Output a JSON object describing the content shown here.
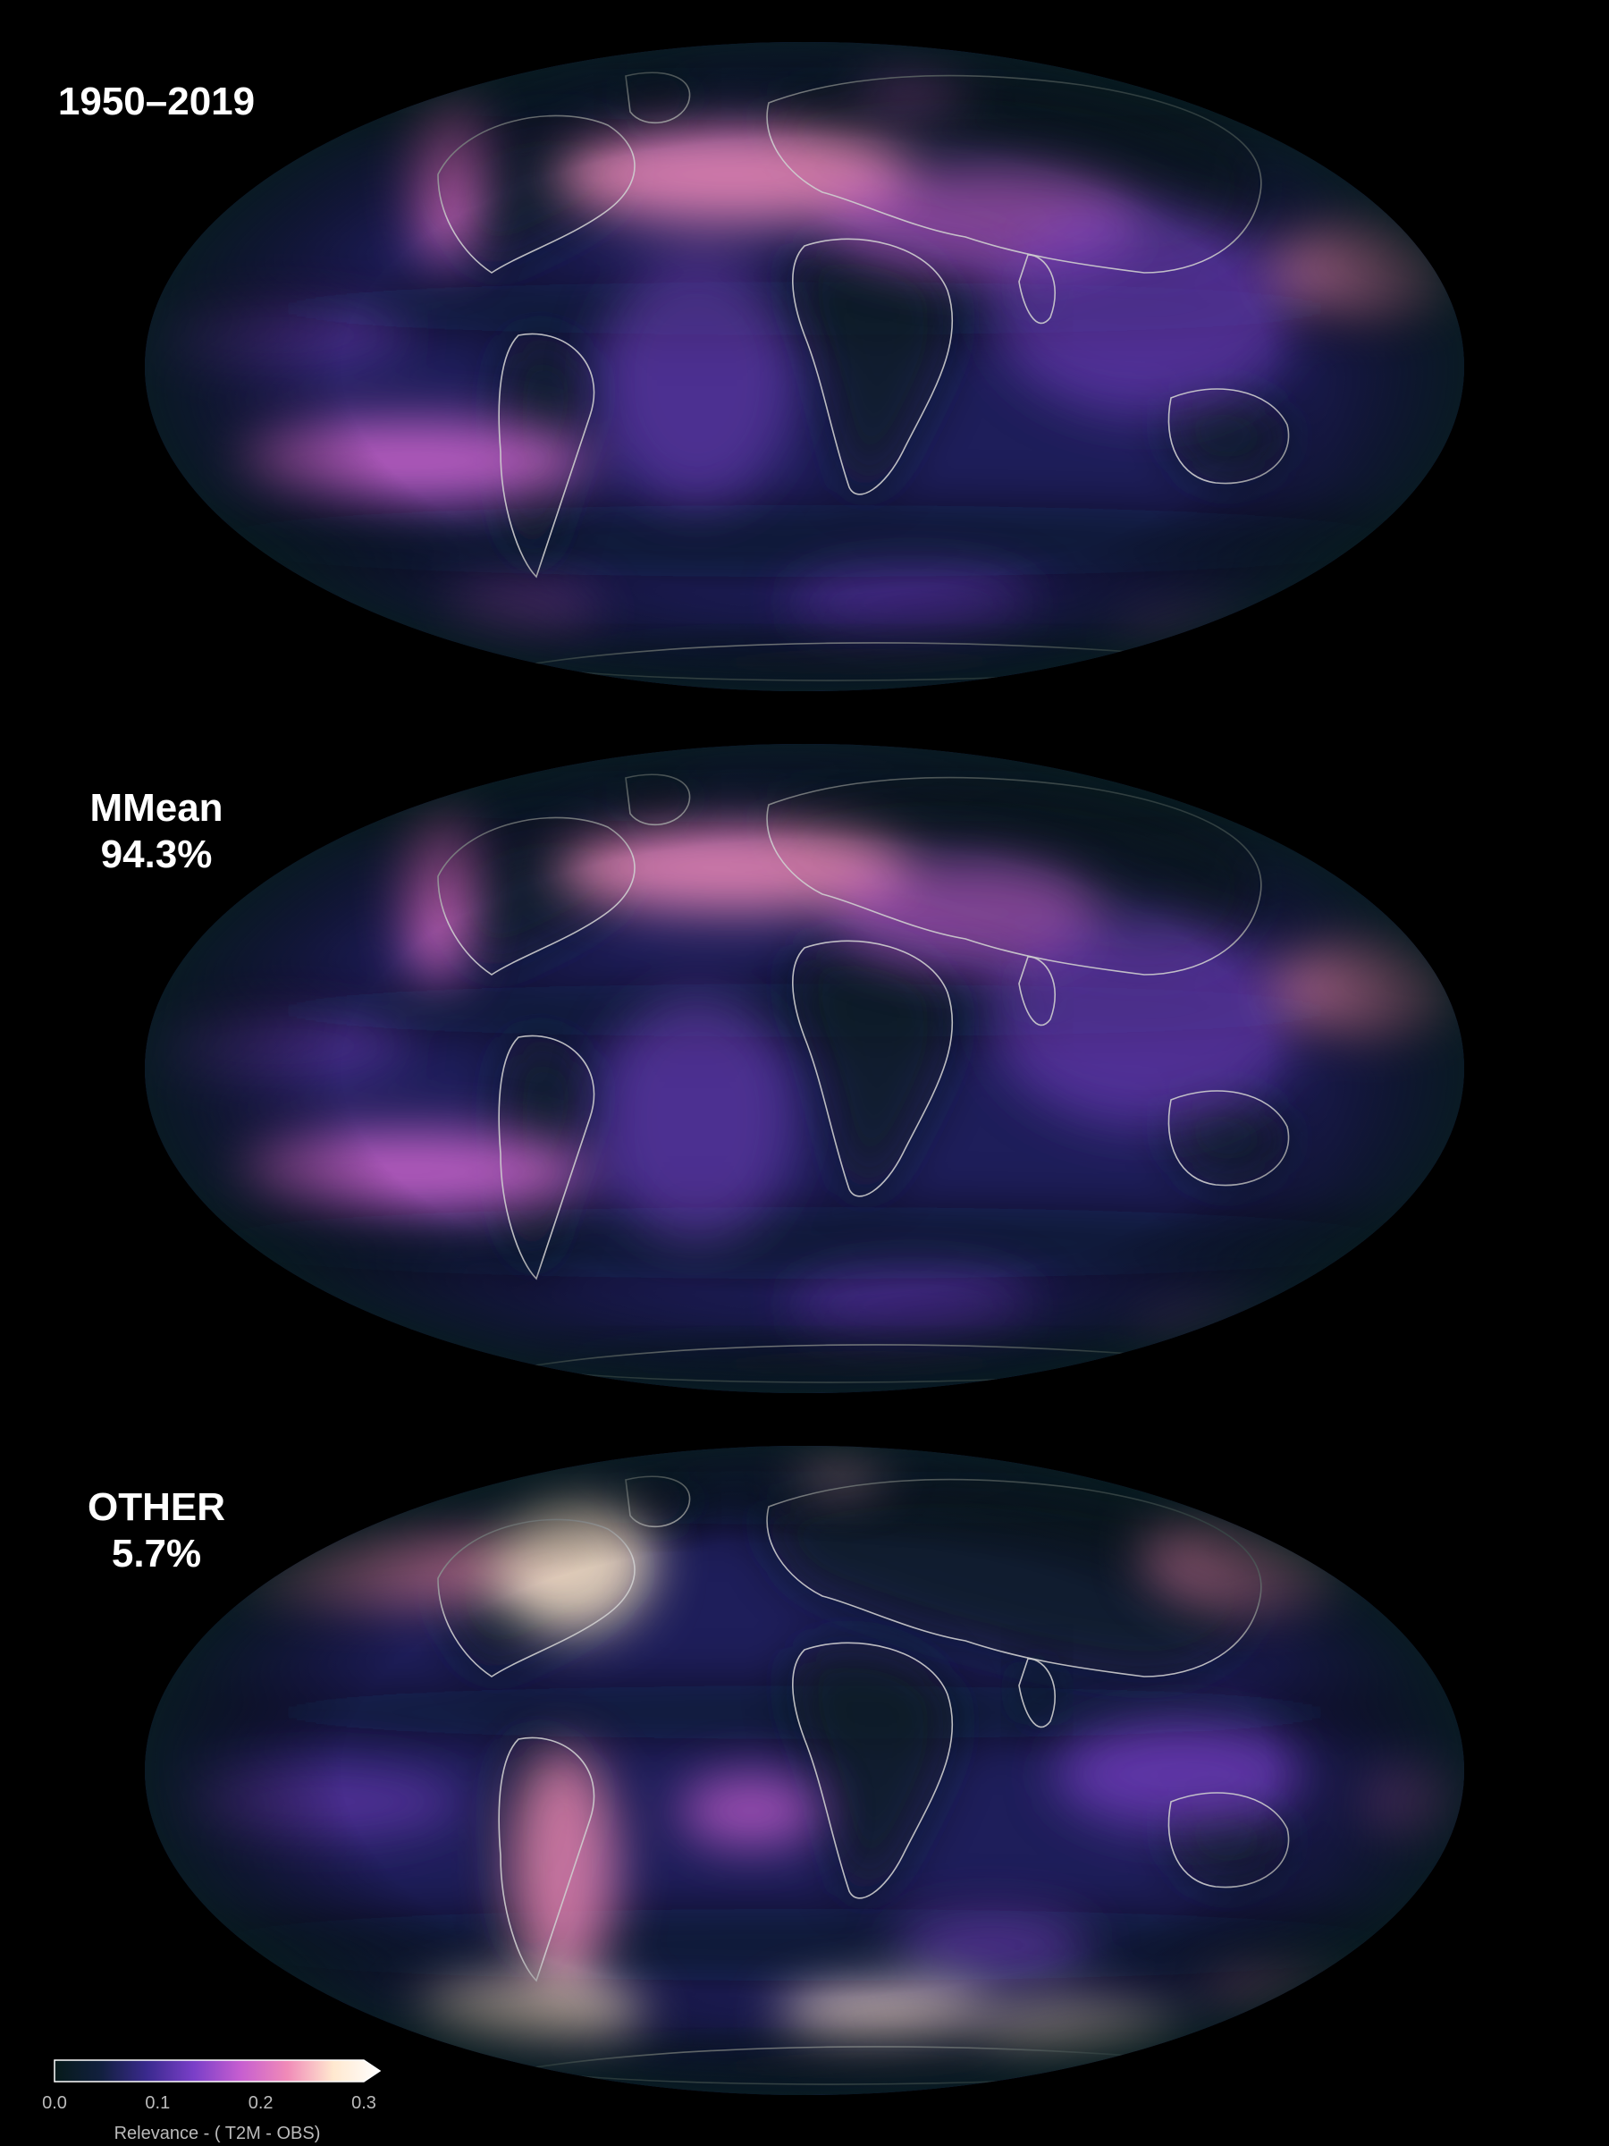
{
  "panels": [
    {
      "id": "total",
      "label_lines": [
        "1950–2019"
      ]
    },
    {
      "id": "mmean",
      "label_lines": [
        "MMean",
        "94.3%"
      ]
    },
    {
      "id": "other",
      "label_lines": [
        "OTHER",
        "5.7%"
      ]
    }
  ],
  "colorbar": {
    "ticks": [
      "0.0",
      "0.1",
      "0.2",
      "0.3"
    ],
    "tick_values": [
      0.0,
      0.1,
      0.2,
      0.3
    ],
    "range": [
      0.0,
      0.3
    ],
    "extend": "max",
    "label": "Relevance - ( T2M - OBS)",
    "colormap": [
      "#061a1a",
      "#12203f",
      "#3b2a8f",
      "#7a3fc8",
      "#c65ed0",
      "#f08ab8",
      "#ffe8cf",
      "#ffffff"
    ]
  },
  "map_style": {
    "projection": "Mollweide",
    "ocean_base": "#1e1e5a",
    "coastline_color": "#cfcfcf",
    "background": "#000000"
  }
}
